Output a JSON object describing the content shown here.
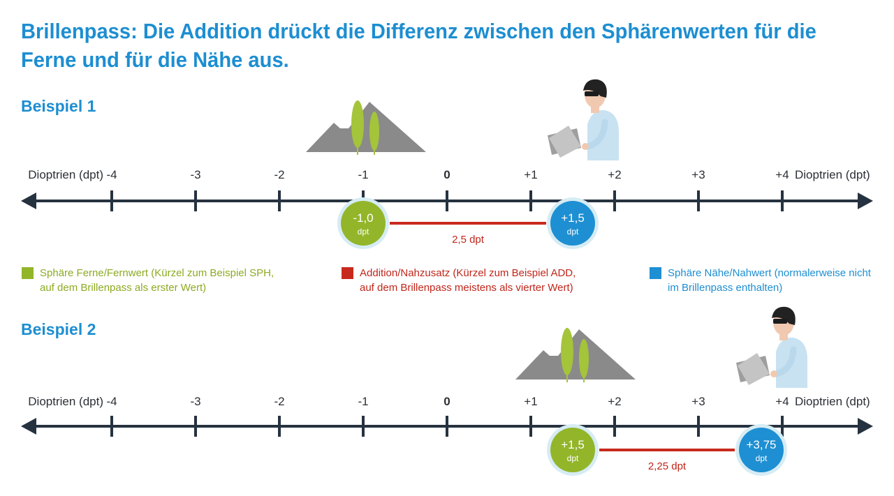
{
  "title_lines": [
    "Brillenpass: Die Addition drückt die Differenz zwischen den Sphärenwerten für die",
    "Ferne und für die Nähe aus."
  ],
  "axis": {
    "left_label": "Dioptrien (dpt)",
    "right_label": "Dioptrien (dpt)",
    "ticks": [
      {
        "value": -4,
        "label": "-4"
      },
      {
        "value": -3,
        "label": "-3"
      },
      {
        "value": -2,
        "label": "-2"
      },
      {
        "value": -1,
        "label": "-1"
      },
      {
        "value": 0,
        "label": "0"
      },
      {
        "value": 1,
        "label": "+1"
      },
      {
        "value": 2,
        "label": "+2"
      },
      {
        "value": 3,
        "label": "+3"
      },
      {
        "value": 4,
        "label": "+4"
      }
    ]
  },
  "examples": [
    {
      "heading": "Beispiel 1",
      "far": {
        "value": -1.0,
        "label": "-1,0",
        "unit": "dpt"
      },
      "near": {
        "value": 1.5,
        "label": "+1,5",
        "unit": "dpt"
      },
      "difference_label": "2,5 dpt"
    },
    {
      "heading": "Beispiel 2",
      "far": {
        "value": 1.5,
        "label": "+1,5",
        "unit": "dpt"
      },
      "near": {
        "value": 3.75,
        "label": "+3,75",
        "unit": "dpt"
      },
      "difference_label": "2,25 dpt"
    }
  ],
  "legend": {
    "sph": [
      "Sphäre Ferne/Fernwert (Kürzel zum Beispiel SPH,",
      "auf dem Brillenpass als erster Wert)"
    ],
    "add": [
      "Addition/Nahzusatz (Kürzel zum Beispiel ADD,",
      "auf dem Brillenpass meistens als vierter Wert)"
    ],
    "near": [
      "Sphäre Nähe/Nahwert (normalerweise nicht",
      "im Brillenpass enthalten)"
    ]
  },
  "colors": {
    "heading": "#1d8ed1",
    "far_sphere": "#93b52a",
    "addition": "#c8291d",
    "near_sphere": "#1e8fd2",
    "axis": "#26323f",
    "mountain": "#8a8a8a",
    "tree": "#a4c43a"
  },
  "icons": {
    "far_vision": "mountain-tree-icon",
    "near_vision": "reading-person-icon"
  }
}
